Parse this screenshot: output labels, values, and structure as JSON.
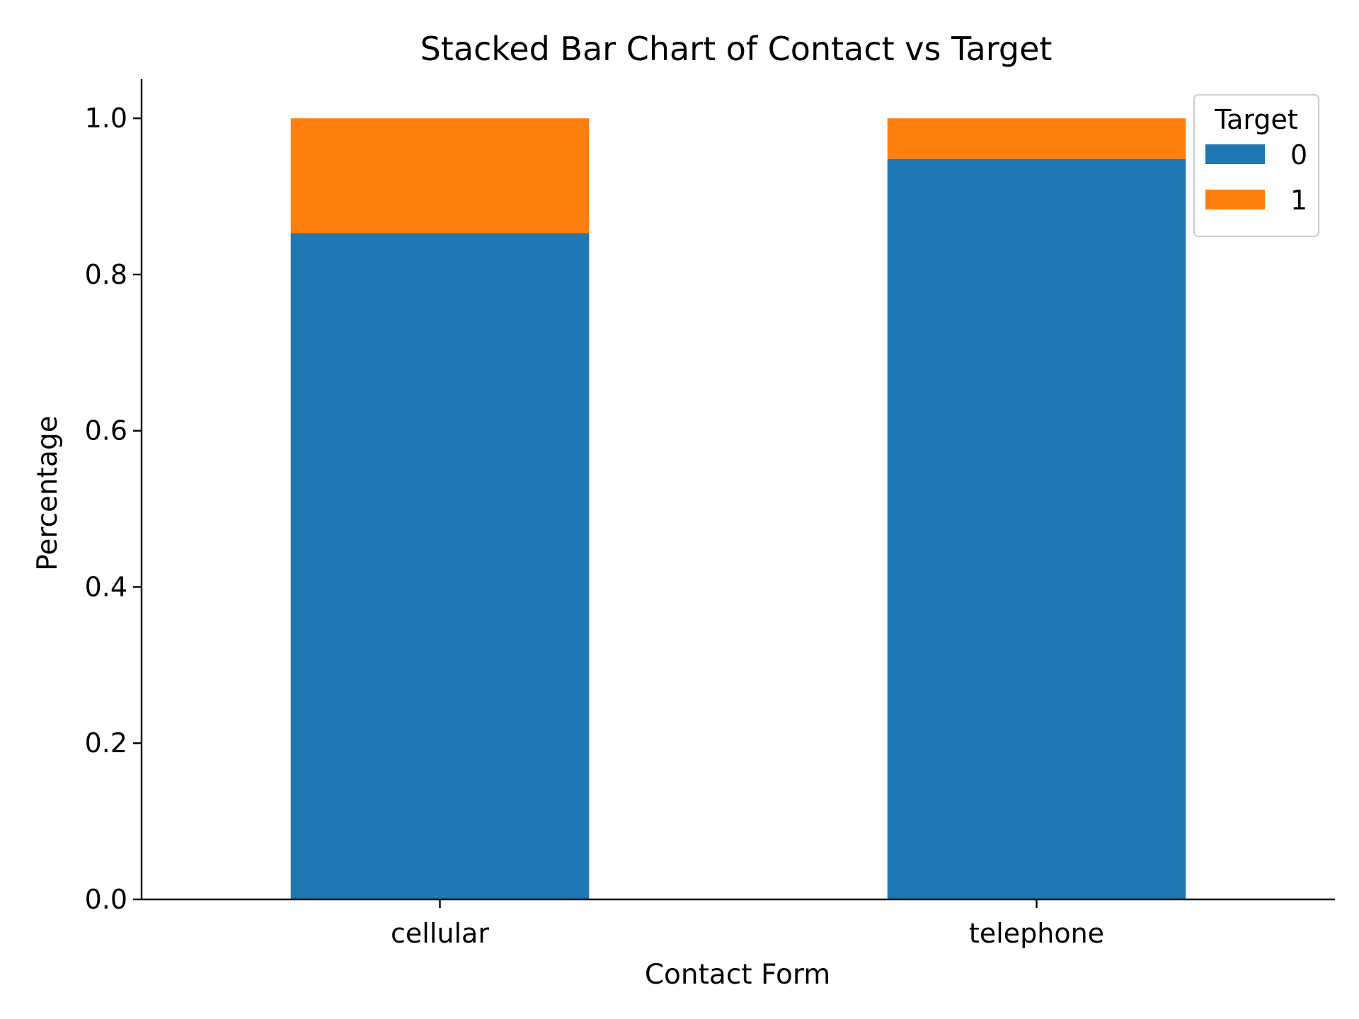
{
  "chart_data": {
    "type": "bar",
    "stacked": true,
    "title": "Stacked Bar Chart of Contact vs Target",
    "xlabel": "Contact Form",
    "ylabel": "Percentage",
    "categories": [
      "cellular",
      "telephone"
    ],
    "series": [
      {
        "name": "0",
        "values": [
          0.853,
          0.948
        ],
        "color": "#1f77b4"
      },
      {
        "name": "1",
        "values": [
          0.147,
          0.052
        ],
        "color": "#ff7f0e"
      }
    ],
    "ylim": [
      0,
      1.05
    ],
    "yticks": [
      "0.0",
      "0.2",
      "0.4",
      "0.6",
      "0.8",
      "1.0"
    ],
    "grid": false,
    "legend": {
      "title": "Target",
      "placement": "top-right"
    }
  }
}
